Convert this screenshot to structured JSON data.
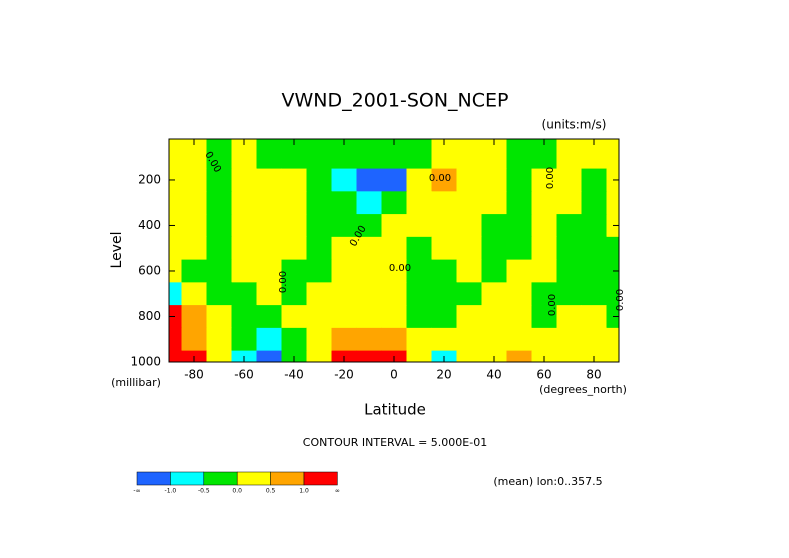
{
  "chart_data": {
    "type": "contour",
    "title": "VWND_2001-SON_NCEP",
    "units": "(units:m/s)",
    "y_label": "Level",
    "y_unit": "(millibar)",
    "x_label": "Latitude",
    "x_unit": "(degrees_north)",
    "note": "CONTOUR INTERVAL = 5.000E-01",
    "annotation": "(mean) lon:0..357.5",
    "x": [
      -90,
      -80,
      -70,
      -60,
      -50,
      -40,
      -30,
      -20,
      -10,
      0,
      10,
      20,
      30,
      40,
      50,
      60,
      70,
      80,
      90
    ],
    "y": [
      100,
      200,
      300,
      400,
      500,
      600,
      700,
      800,
      900,
      1000
    ],
    "z": [
      [
        0.2,
        0.2,
        -0.2,
        0.2,
        -0.2,
        -0.2,
        -0.2,
        -0.2,
        -0.2,
        -0.2,
        -0.2,
        0.2,
        0.2,
        0.2,
        -0.2,
        -0.2,
        0.2,
        0.2,
        0.2
      ],
      [
        0.2,
        0.2,
        -0.2,
        0.2,
        0.2,
        0.2,
        -0.2,
        -0.7,
        -1.2,
        -1.2,
        0.2,
        0.7,
        0.2,
        0.2,
        -0.2,
        0.2,
        0.2,
        -0.2,
        0.2
      ],
      [
        0.2,
        0.2,
        -0.2,
        0.2,
        0.2,
        0.2,
        -0.2,
        -0.2,
        -0.7,
        -0.2,
        0.2,
        0.2,
        0.2,
        0.2,
        -0.2,
        0.2,
        0.2,
        -0.2,
        0.2
      ],
      [
        0.2,
        0.2,
        -0.2,
        0.2,
        0.2,
        0.2,
        -0.2,
        -0.2,
        -0.2,
        0.2,
        0.2,
        0.2,
        0.2,
        -0.2,
        -0.2,
        0.2,
        -0.2,
        -0.2,
        0.2
      ],
      [
        0.2,
        0.2,
        -0.2,
        0.2,
        0.2,
        0.2,
        -0.2,
        0.2,
        0.2,
        0.2,
        -0.2,
        0.2,
        0.2,
        -0.2,
        -0.2,
        0.2,
        -0.2,
        -0.2,
        -0.2
      ],
      [
        0.2,
        -0.2,
        -0.2,
        0.2,
        0.2,
        -0.2,
        -0.2,
        0.2,
        0.2,
        0.2,
        -0.2,
        -0.2,
        0.2,
        -0.2,
        0.2,
        0.2,
        -0.2,
        -0.2,
        -0.2
      ],
      [
        -0.7,
        0.2,
        -0.2,
        -0.2,
        0.2,
        -0.2,
        0.2,
        0.2,
        0.2,
        0.2,
        -0.2,
        -0.2,
        -0.2,
        0.2,
        0.2,
        -0.2,
        -0.2,
        -0.2,
        -0.2
      ],
      [
        1.3,
        0.7,
        0.2,
        -0.2,
        -0.2,
        0.2,
        0.2,
        0.2,
        0.2,
        0.2,
        -0.2,
        -0.2,
        0.2,
        0.2,
        0.2,
        -0.2,
        0.2,
        0.2,
        -0.2
      ],
      [
        1.3,
        0.7,
        0.2,
        -0.2,
        -0.7,
        -0.2,
        0.2,
        0.7,
        0.7,
        0.7,
        0.2,
        0.2,
        0.2,
        0.2,
        0.2,
        0.2,
        0.2,
        0.2,
        0.2
      ],
      [
        1.3,
        1.3,
        0.2,
        -0.7,
        -1.2,
        -0.2,
        0.2,
        1.3,
        1.3,
        1.3,
        0.2,
        -0.7,
        0.2,
        0.2,
        0.7,
        0.2,
        0.2,
        0.2,
        0.2
      ]
    ],
    "xlim": [
      -90,
      90
    ],
    "ylim": [
      1000,
      20
    ],
    "xticks": [
      -80,
      -60,
      -40,
      -20,
      0,
      20,
      40,
      60,
      80
    ],
    "yticks": [
      200,
      400,
      600,
      800,
      1000
    ],
    "levels": [
      {
        "value": -1,
        "label": "-1.0"
      },
      -0.5,
      {
        "value": 0,
        "label": "0.0"
      },
      0.5,
      {
        "value": 1,
        "label": "1.0"
      }
    ],
    "level_ends": [
      "-∞",
      "∞"
    ],
    "colors": [
      "#1e64ff",
      "#00ffff",
      "#00e600",
      "#ffff00",
      "#ffa500",
      "#ff0000"
    ],
    "contour_labels": [
      "0.00",
      "0.00",
      "0.00",
      "0.00",
      "0.00",
      "0.00",
      "0.00",
      "0.00"
    ]
  }
}
